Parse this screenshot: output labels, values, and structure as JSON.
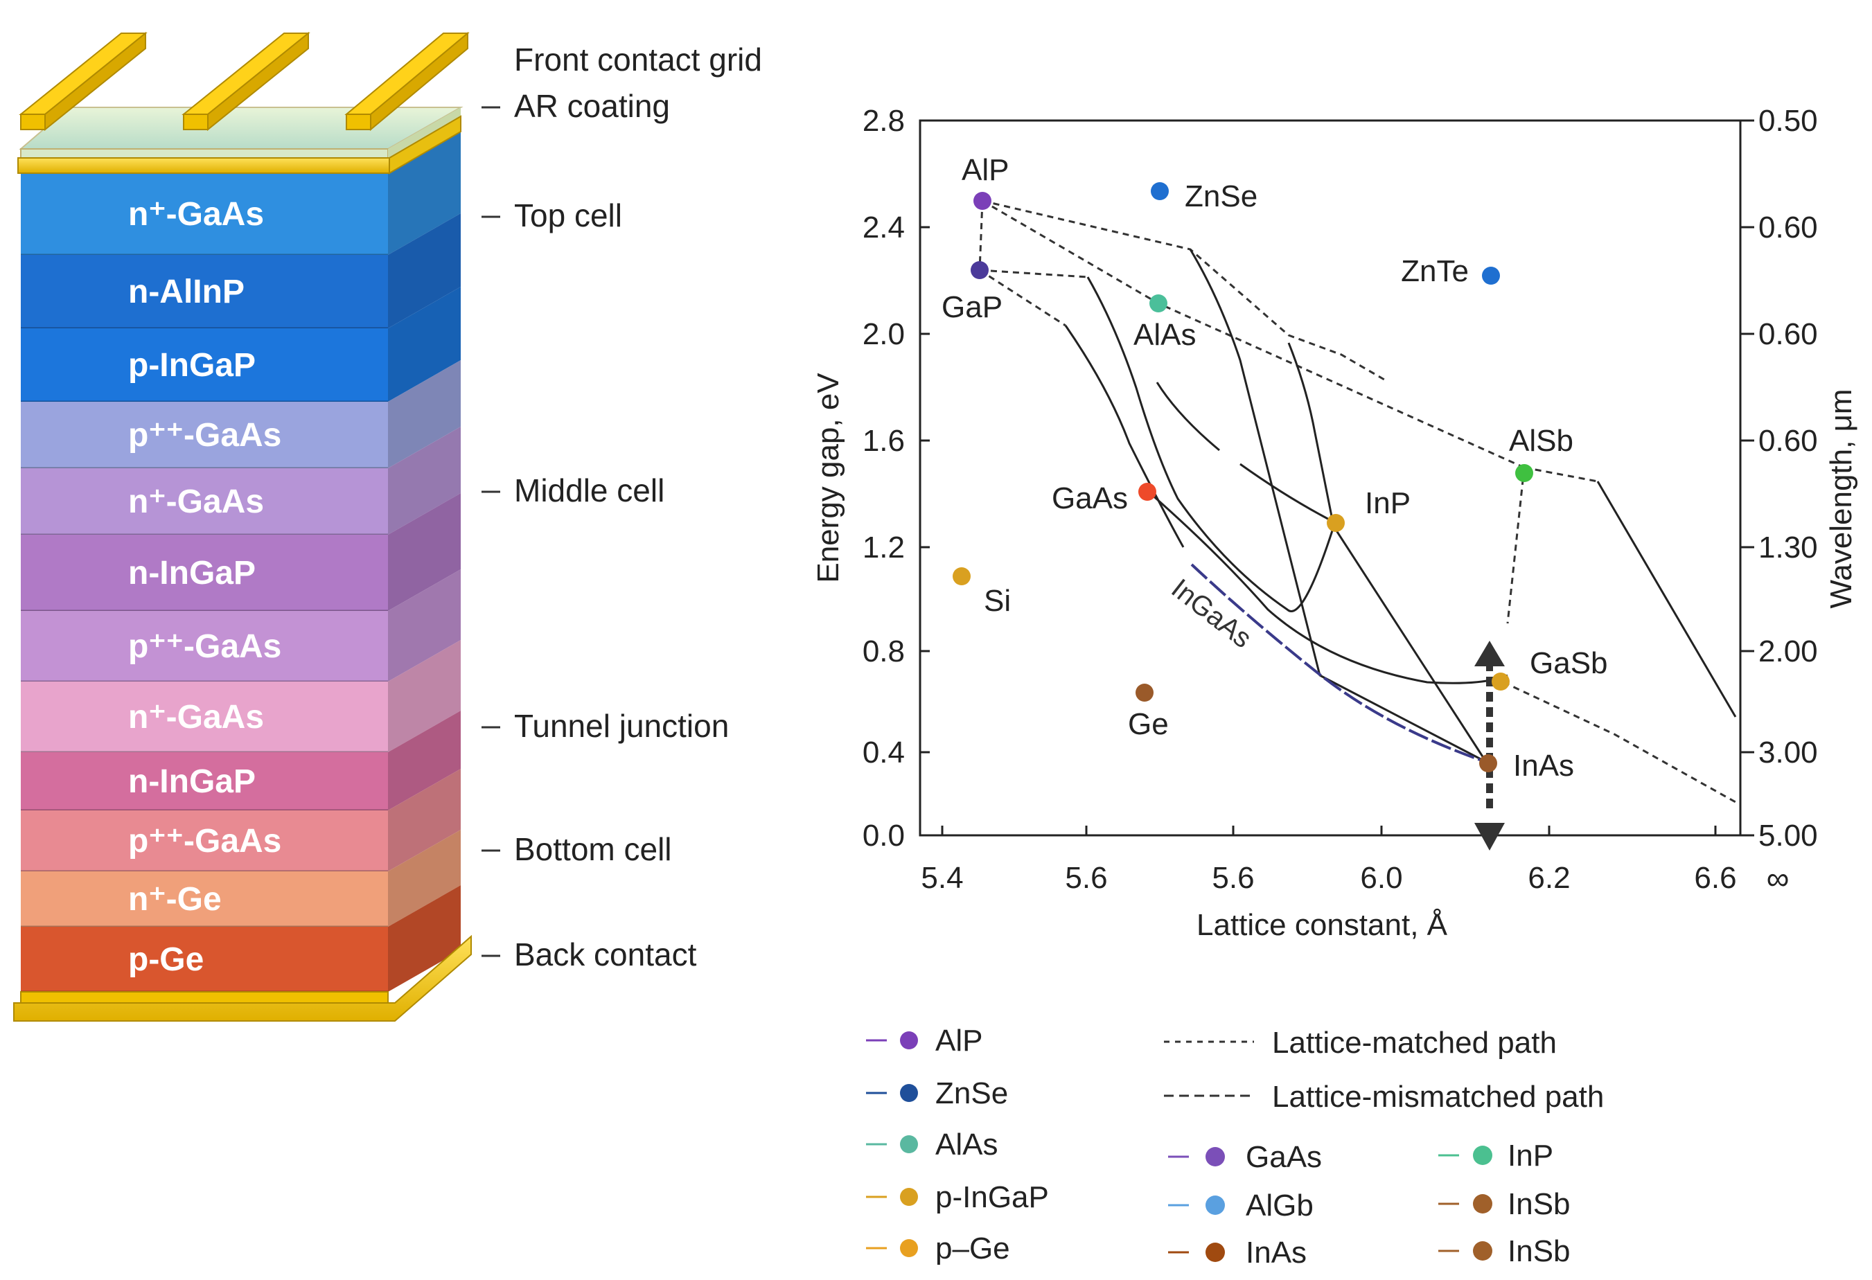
{
  "stack": {
    "layers": [
      {
        "label": "n⁺-GaAs",
        "color": "#2f8fe0"
      },
      {
        "label": "n-AlInP",
        "color": "#1e6fd0"
      },
      {
        "label": "p-InGaP",
        "color": "#1c76dc"
      },
      {
        "label": "p⁺⁺-GaAs",
        "color": "#9aa4de"
      },
      {
        "label": "n⁺-GaAs",
        "color": "#b694d6"
      },
      {
        "label": "n-InGaP",
        "color": "#b07ac6"
      },
      {
        "label": "p⁺⁺-GaAs",
        "color": "#c392d4"
      },
      {
        "label": "n⁺-GaAs",
        "color": "#e8a4cc"
      },
      {
        "label": "n-InGaP",
        "color": "#d46e9e"
      },
      {
        "label": "p⁺⁺-GaAs",
        "color": "#e88a92"
      },
      {
        "label": "n⁺-Ge",
        "color": "#f0a07a"
      },
      {
        "label": "p-Ge",
        "color": "#d9562e"
      }
    ],
    "callouts": [
      {
        "text": "Front contact grid",
        "leader": false
      },
      {
        "text": "AR coating",
        "leader": true
      },
      {
        "text": "Top cell",
        "leader": true
      },
      {
        "text": "Middle cell",
        "leader": true
      },
      {
        "text": "Tunnel junction",
        "leader": true
      },
      {
        "text": "Bottom cell",
        "leader": true
      },
      {
        "text": "Back contact",
        "leader": true
      }
    ]
  },
  "chart_data": {
    "type": "scatter",
    "xlabel": "Lattice constant, Å",
    "ylabel": "Energy gap, eV",
    "y2label": "Wavelength, μm",
    "xlim": [
      5.4,
      6.6
    ],
    "ylim": [
      0.0,
      2.8
    ],
    "xticks": [
      "5.4",
      "5.6",
      "5.6",
      "6.0",
      "6.2",
      "6.6"
    ],
    "xtick_extra": "∞",
    "yticks": [
      "0.0",
      "0.4",
      "0.8",
      "1.2",
      "1.6",
      "2.0",
      "2.4",
      "2.8"
    ],
    "y2ticks": [
      "5.00",
      "3.00",
      "2.00",
      "1.30",
      "0.60",
      "0.60",
      "0.60",
      "0.50"
    ],
    "points": [
      {
        "name": "AlP",
        "x": 5.46,
        "y": 2.5,
        "color": "#7b3fb8"
      },
      {
        "name": "GaP",
        "x": 5.45,
        "y": 2.24,
        "color": "#4b3a9a"
      },
      {
        "name": "ZnSe",
        "x": 5.67,
        "y": 2.53,
        "color": "#1f6fd0"
      },
      {
        "name": "AlAs",
        "x": 5.66,
        "y": 2.12,
        "color": "#4bbf9a"
      },
      {
        "name": "ZnTe",
        "x": 6.1,
        "y": 2.21,
        "color": "#1f6fd0"
      },
      {
        "name": "GaAs",
        "x": 5.65,
        "y": 1.41,
        "color": "#ee4a2a"
      },
      {
        "name": "InP",
        "x": 5.87,
        "y": 1.28,
        "color": "#d9a020"
      },
      {
        "name": "AlSb",
        "x": 6.14,
        "y": 1.47,
        "color": "#3fc040"
      },
      {
        "name": "Si",
        "x": 5.43,
        "y": 1.09,
        "color": "#d9a020"
      },
      {
        "name": "Ge",
        "x": 5.66,
        "y": 0.63,
        "color": "#9a5a2a"
      },
      {
        "name": "GaSb",
        "x": 6.1,
        "y": 0.68,
        "color": "#d9a020"
      },
      {
        "name": "InAs",
        "x": 6.06,
        "y": 0.34,
        "color": "#9a5a2a"
      }
    ],
    "curve_label": "InGaAs",
    "legend": {
      "col1": [
        {
          "label": "AlP",
          "color": "#7b3fb8"
        },
        {
          "label": "ZnSe",
          "color": "#1f4f9a"
        },
        {
          "label": "AlAs",
          "color": "#5ab8a0"
        },
        {
          "label": "p-InGaP",
          "color": "#d9a020"
        },
        {
          "label": "p–Ge",
          "color": "#e8a020"
        }
      ],
      "paths": [
        "Lattice-matched path",
        "Lattice-mismatched  path"
      ],
      "col2": [
        {
          "label": "GaAs",
          "color": "#7b4fb8"
        },
        {
          "label": "AlGb",
          "color": "#5aa0e0"
        },
        {
          "label": "InAs",
          "color": "#a04a10"
        }
      ],
      "col3": [
        {
          "label": "InP",
          "color": "#4bc090"
        },
        {
          "label": "InSb",
          "color": "#a0602a"
        },
        {
          "label": "InSb",
          "color": "#a0602a"
        }
      ]
    }
  }
}
